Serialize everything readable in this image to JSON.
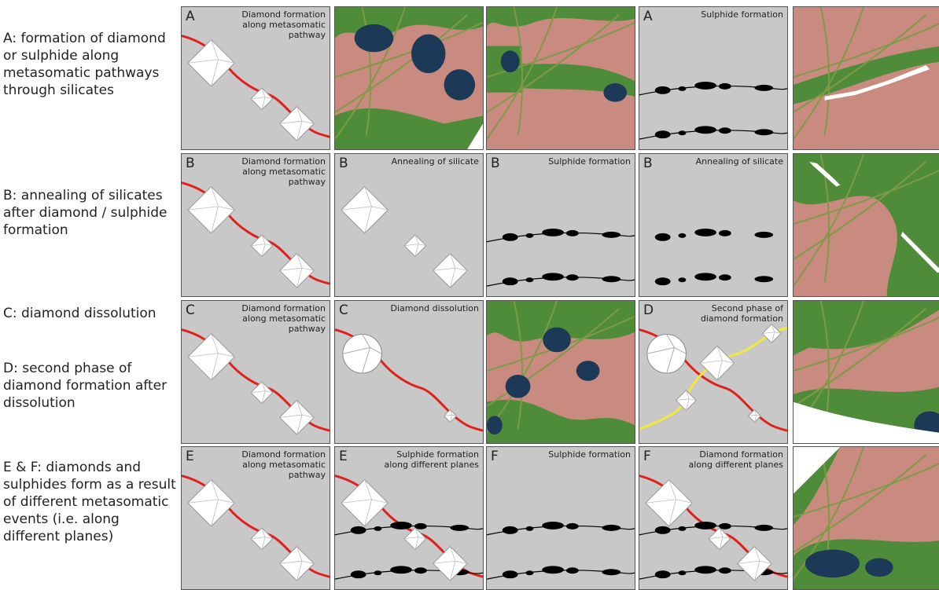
{
  "rows": [
    {
      "labels": [
        "A: formation of diamond or sulphide along metasomatic pathways through silicates"
      ],
      "panels": [
        {
          "letter": "A",
          "caption": "Diamond formation along metasomatic pathway"
        },
        {
          "letter": "A",
          "caption": "Sulphide formation"
        }
      ]
    },
    {
      "labels": [
        "B: annealing of silicates after diamond / sulphide formation"
      ],
      "panels": [
        {
          "letter": "B",
          "caption": "Diamond formation along metasomatic pathway"
        },
        {
          "letter": "B",
          "caption": "Annealing of silicate"
        },
        {
          "letter": "B",
          "caption": "Sulphide formation"
        },
        {
          "letter": "B",
          "caption": "Annealing of silicate"
        }
      ]
    },
    {
      "labels": [
        "C: diamond dissolution",
        "D: second phase of diamond formation after dissolution"
      ],
      "panels": [
        {
          "letter": "C",
          "caption": "Diamond formation along metasomatic pathway"
        },
        {
          "letter": "C",
          "caption": "Diamond dissolution"
        },
        {
          "letter": "D",
          "caption": "Second phase of diamond formation"
        }
      ]
    },
    {
      "labels": [
        "E & F: diamonds and sulphides form as a result of different metasomatic events (i.e. along different planes)"
      ],
      "panels": [
        {
          "letter": "E",
          "caption": "Diamond formation along metasomatic pathway"
        },
        {
          "letter": "E",
          "caption": "Sulphide formation along different planes"
        },
        {
          "letter": "F",
          "caption": "Sulphide formation"
        },
        {
          "letter": "F",
          "caption": "Diamond formation along different planes"
        }
      ]
    }
  ]
}
